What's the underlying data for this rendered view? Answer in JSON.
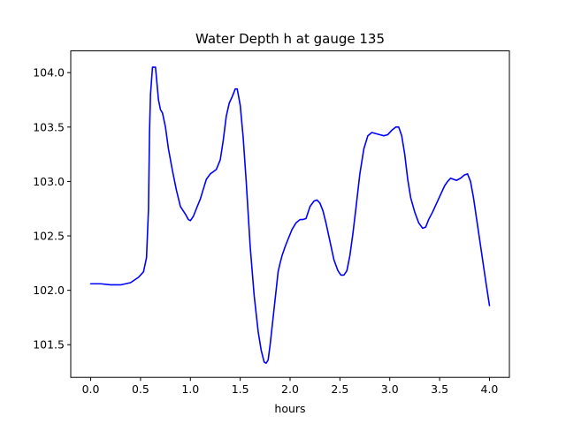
{
  "chart_data": {
    "type": "line",
    "title": "Water Depth h at gauge 135",
    "xlabel": "hours",
    "ylabel": "",
    "xlim": [
      -0.2,
      4.2
    ],
    "ylim": [
      101.2,
      104.2
    ],
    "xticks": [
      0.0,
      0.5,
      1.0,
      1.5,
      2.0,
      2.5,
      3.0,
      3.5,
      4.0
    ],
    "xtick_labels": [
      "0.0",
      "0.5",
      "1.0",
      "1.5",
      "2.0",
      "2.5",
      "3.0",
      "3.5",
      "4.0"
    ],
    "yticks": [
      101.5,
      102.0,
      102.5,
      103.0,
      103.5,
      104.0
    ],
    "ytick_labels": [
      "101.5",
      "102.0",
      "102.5",
      "103.0",
      "103.5",
      "104.0"
    ],
    "grid": false,
    "legend": "none",
    "series": [
      {
        "color": "#0000ff",
        "x": [
          0.0,
          0.1,
          0.2,
          0.3,
          0.4,
          0.48,
          0.53,
          0.56,
          0.58,
          0.59,
          0.6,
          0.62,
          0.65,
          0.68,
          0.7,
          0.72,
          0.75,
          0.78,
          0.82,
          0.86,
          0.9,
          0.95,
          0.98,
          1.0,
          1.03,
          1.06,
          1.1,
          1.13,
          1.16,
          1.2,
          1.23,
          1.26,
          1.3,
          1.33,
          1.36,
          1.39,
          1.42,
          1.45,
          1.47,
          1.5,
          1.53,
          1.56,
          1.6,
          1.64,
          1.68,
          1.71,
          1.74,
          1.76,
          1.78,
          1.8,
          1.83,
          1.86,
          1.88,
          1.9,
          1.92,
          1.95,
          1.98,
          2.02,
          2.06,
          2.1,
          2.13,
          2.16,
          2.2,
          2.24,
          2.27,
          2.3,
          2.33,
          2.36,
          2.4,
          2.44,
          2.48,
          2.51,
          2.54,
          2.57,
          2.6,
          2.63,
          2.66,
          2.7,
          2.74,
          2.78,
          2.82,
          2.86,
          2.9,
          2.94,
          2.98,
          3.02,
          3.06,
          3.09,
          3.12,
          3.15,
          3.18,
          3.21,
          3.25,
          3.29,
          3.33,
          3.36,
          3.39,
          3.43,
          3.47,
          3.51,
          3.55,
          3.58,
          3.61,
          3.64,
          3.67,
          3.71,
          3.75,
          3.78,
          3.81,
          3.84,
          3.88,
          3.92,
          3.96,
          4.0
        ],
        "y": [
          102.06,
          102.06,
          102.05,
          102.05,
          102.07,
          102.12,
          102.17,
          102.3,
          102.75,
          103.45,
          103.8,
          104.05,
          104.05,
          103.75,
          103.66,
          103.63,
          103.5,
          103.3,
          103.1,
          102.92,
          102.77,
          102.7,
          102.65,
          102.64,
          102.68,
          102.75,
          102.84,
          102.93,
          103.02,
          103.07,
          103.09,
          103.11,
          103.2,
          103.38,
          103.6,
          103.72,
          103.78,
          103.85,
          103.85,
          103.7,
          103.4,
          103.0,
          102.4,
          101.95,
          101.62,
          101.45,
          101.34,
          101.33,
          101.36,
          101.5,
          101.75,
          102.0,
          102.17,
          102.25,
          102.32,
          102.4,
          102.47,
          102.56,
          102.62,
          102.65,
          102.65,
          102.66,
          102.77,
          102.82,
          102.83,
          102.8,
          102.73,
          102.62,
          102.45,
          102.28,
          102.18,
          102.14,
          102.14,
          102.18,
          102.32,
          102.52,
          102.75,
          103.07,
          103.3,
          103.42,
          103.45,
          103.44,
          103.43,
          103.42,
          103.43,
          103.47,
          103.5,
          103.5,
          103.42,
          103.25,
          103.02,
          102.85,
          102.72,
          102.62,
          102.57,
          102.58,
          102.65,
          102.72,
          102.8,
          102.88,
          102.96,
          103.0,
          103.03,
          103.02,
          103.01,
          103.03,
          103.06,
          103.07,
          103.0,
          102.85,
          102.6,
          102.35,
          102.1,
          101.86
        ]
      }
    ]
  }
}
